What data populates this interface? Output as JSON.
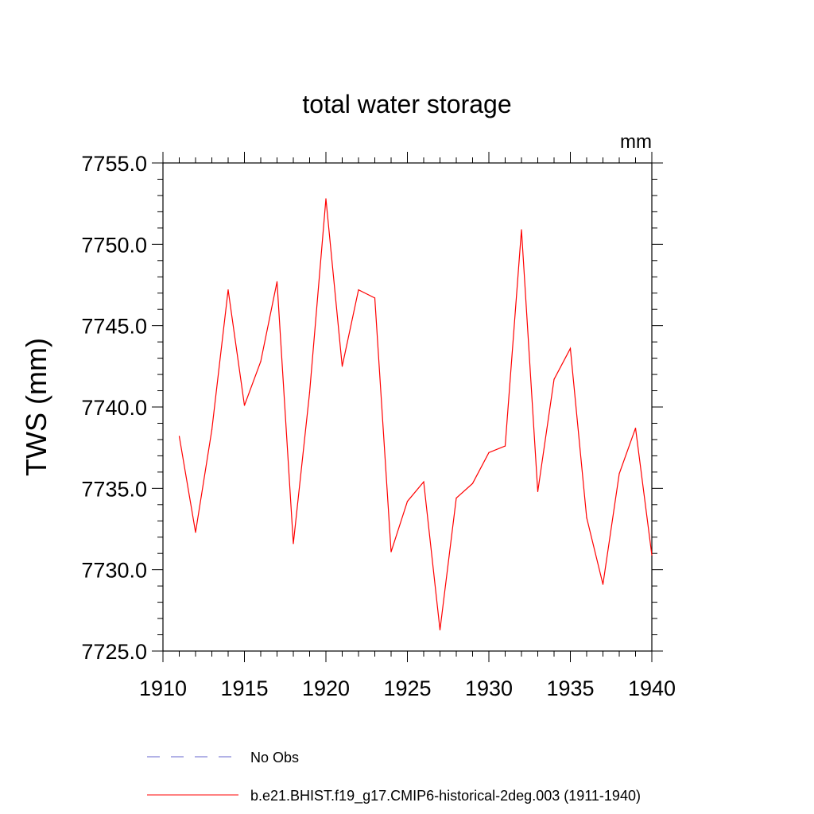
{
  "chart_data": {
    "type": "line",
    "title": "total water storage",
    "units_label": "mm",
    "ylabel": "TWS  (mm)",
    "xlabel": "",
    "xlim": [
      1910,
      1940
    ],
    "ylim": [
      7725.0,
      7755.0
    ],
    "x_ticks": [
      1910,
      1915,
      1920,
      1925,
      1930,
      1935,
      1940
    ],
    "y_ticks": [
      "7725.0",
      "7730.0",
      "7735.0",
      "7740.0",
      "7745.0",
      "7750.0",
      "7755.0"
    ],
    "y_tick_values": [
      7725,
      7730,
      7735,
      7740,
      7745,
      7750,
      7755
    ],
    "grid": false,
    "series": [
      {
        "name": "b.e21.BHIST.f19_g17.CMIP6-historical-2deg.003 (1911-1940)",
        "color": "#ff0000",
        "style": "solid",
        "x": [
          1911,
          1912,
          1913,
          1914,
          1915,
          1916,
          1917,
          1918,
          1919,
          1920,
          1921,
          1922,
          1923,
          1924,
          1925,
          1926,
          1927,
          1928,
          1929,
          1930,
          1931,
          1932,
          1933,
          1934,
          1935,
          1936,
          1937,
          1938,
          1939,
          1940
        ],
        "y": [
          7738.2,
          7732.3,
          7738.6,
          7747.2,
          7740.1,
          7742.8,
          7747.7,
          7731.6,
          7740.9,
          7752.8,
          7742.5,
          7747.2,
          7746.7,
          7731.1,
          7734.2,
          7735.4,
          7726.3,
          7734.4,
          7735.3,
          7737.2,
          7737.6,
          7750.9,
          7734.8,
          7741.7,
          7743.6,
          7733.2,
          7729.1,
          7735.9,
          7738.7,
          7730.9
        ]
      }
    ],
    "legend": {
      "placement": "bottom",
      "entries": [
        {
          "label": "No Obs",
          "color": "#6666cc",
          "style": "dashed"
        },
        {
          "label": "b.e21.BHIST.f19_g17.CMIP6-historical-2deg.003 (1911-1940)",
          "color": "#ff0000",
          "style": "solid"
        }
      ]
    }
  }
}
